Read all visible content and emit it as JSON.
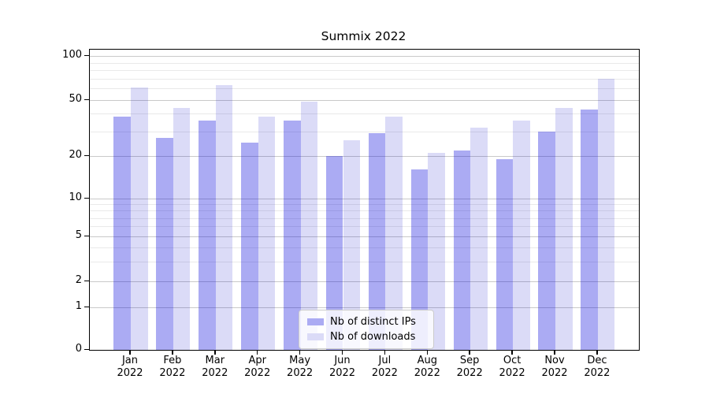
{
  "title": "Summix 2022",
  "chart_data": {
    "type": "bar",
    "categories": [
      "Jan",
      "Feb",
      "Mar",
      "Apr",
      "May",
      "Jun",
      "Jul",
      "Aug",
      "Sep",
      "Oct",
      "Nov",
      "Dec"
    ],
    "year": "2022",
    "series": [
      {
        "name": "Nb of distinct IPs",
        "color": "#ababf3",
        "fill": "rgba(0,0,220,0.33)",
        "values": [
          38,
          27,
          36,
          25,
          36,
          20,
          29,
          16,
          22,
          19,
          30,
          43
        ]
      },
      {
        "name": "Nb of downloads",
        "color": "#dbdbf7",
        "fill": "rgba(0,0,200,0.14)",
        "values": [
          61,
          44,
          63,
          38,
          49,
          26,
          38,
          21,
          32,
          36,
          44,
          70
        ]
      }
    ],
    "yscale": "symlog",
    "ylim": [
      0,
      112
    ],
    "y_ticks": [
      100,
      50,
      20,
      10,
      5,
      2,
      1,
      0
    ],
    "grid": {
      "major": true,
      "minor": true,
      "minor_lines": [
        3,
        4,
        6,
        7,
        8,
        9,
        30,
        40,
        60,
        70,
        80,
        90
      ]
    },
    "legend_position": "lower center",
    "xlabel": "",
    "ylabel": ""
  }
}
